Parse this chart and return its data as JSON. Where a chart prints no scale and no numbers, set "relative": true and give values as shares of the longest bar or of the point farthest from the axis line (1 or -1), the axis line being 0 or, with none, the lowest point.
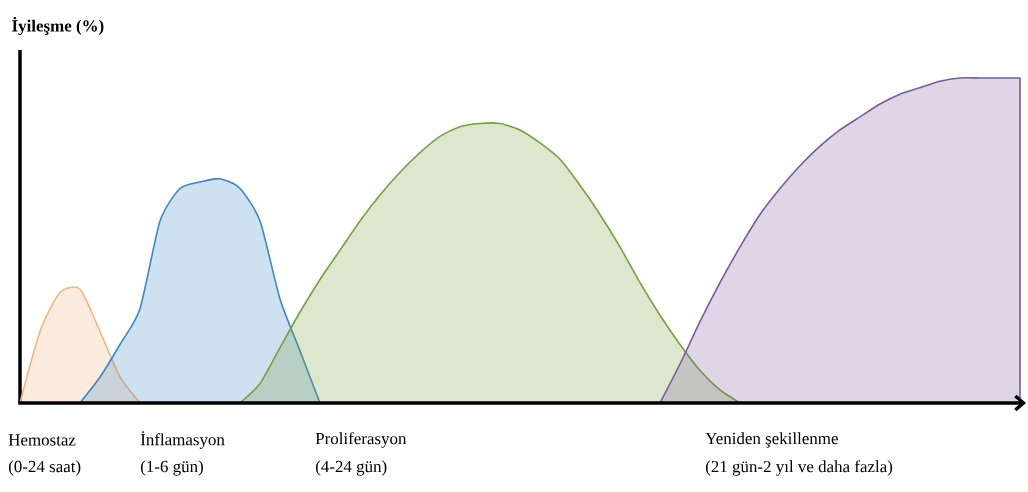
{
  "chart_data": {
    "type": "area",
    "relative": true,
    "ylabel": "İyileşme (%)",
    "categories": [
      null,
      null,
      null,
      null,
      null,
      null,
      null,
      null,
      null,
      null,
      null,
      null,
      null,
      null,
      null,
      null,
      null,
      null,
      null,
      null,
      null,
      null,
      null,
      null,
      null,
      null,
      null,
      null,
      null,
      null,
      null,
      null,
      null,
      null,
      null,
      null,
      null,
      null,
      null,
      null,
      null,
      null,
      null,
      null,
      null,
      null,
      null,
      null,
      null,
      null,
      null
    ],
    "series": [
      {
        "color": "#f5b47c",
        "values": [
          0,
          0.22,
          0.34,
          0.35,
          0.22,
          0.08,
          0,
          null,
          null,
          null,
          null,
          null,
          null,
          null,
          null,
          null,
          null,
          null,
          null,
          null,
          null,
          null,
          null,
          null,
          null,
          null,
          null,
          null,
          null,
          null,
          null,
          null,
          null,
          null,
          null,
          null,
          null,
          null,
          null,
          null,
          null,
          null,
          null,
          null,
          null,
          null,
          null,
          null,
          null,
          null,
          null
        ]
      },
      {
        "color": "#3a86c8",
        "values": [
          null,
          null,
          null,
          0,
          0.08,
          0.18,
          0.29,
          0.56,
          0.66,
          0.68,
          0.69,
          0.66,
          0.56,
          0.32,
          0.16,
          0,
          null,
          null,
          null,
          null,
          null,
          null,
          null,
          null,
          null,
          null,
          null,
          null,
          null,
          null,
          null,
          null,
          null,
          null,
          null,
          null,
          null,
          null,
          null,
          null,
          null,
          null,
          null,
          null,
          null,
          null,
          null,
          null,
          null,
          null,
          null
        ]
      },
      {
        "color": "#76a03c",
        "values": [
          null,
          null,
          null,
          null,
          null,
          null,
          null,
          null,
          null,
          null,
          null,
          0,
          0.06,
          0.17,
          0.28,
          0.38,
          0.47,
          0.56,
          0.64,
          0.71,
          0.77,
          0.82,
          0.85,
          0.86,
          0.86,
          0.84,
          0.8,
          0.75,
          0.67,
          0.58,
          0.48,
          0.37,
          0.27,
          0.18,
          0.1,
          0.04,
          0,
          null,
          null,
          null,
          null,
          null,
          null,
          null,
          null,
          null,
          null,
          null,
          null,
          null,
          null
        ]
      },
      {
        "color": "#7a5a9c",
        "values": [
          null,
          null,
          null,
          null,
          null,
          null,
          null,
          null,
          null,
          null,
          null,
          null,
          null,
          null,
          null,
          null,
          null,
          null,
          null,
          null,
          null,
          null,
          null,
          null,
          null,
          null,
          null,
          null,
          null,
          null,
          null,
          null,
          0,
          0.12,
          0.25,
          0.37,
          0.48,
          0.58,
          0.66,
          0.73,
          0.79,
          0.84,
          0.88,
          0.92,
          0.95,
          0.97,
          0.99,
          1.0,
          1.0,
          1.0,
          1.0
        ]
      }
    ],
    "annotations": [
      "Hemostaz",
      "(0-24 saat)",
      "İnflamasyon",
      "(1-6 gün)",
      "Proliferasyon",
      "(4-24 gün)",
      "Yeniden şekillenme",
      "(21 gün-2 yıl ve daha fazla)"
    ]
  }
}
